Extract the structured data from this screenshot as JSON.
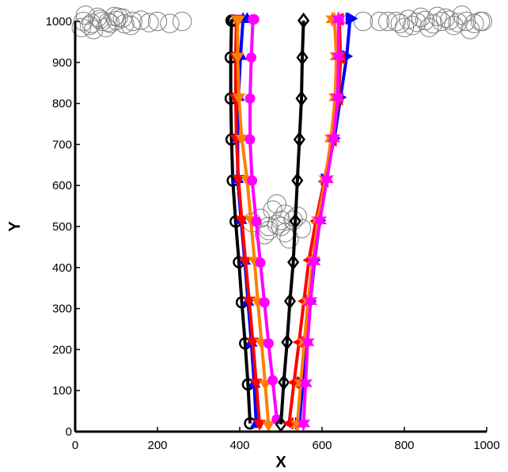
{
  "chart_data": {
    "type": "line",
    "title": "",
    "xlabel": "X",
    "ylabel": "Y",
    "xlim": [
      0,
      1000
    ],
    "ylim": [
      0,
      1000
    ],
    "xticks": [
      0,
      200,
      400,
      600,
      800,
      1000
    ],
    "yticks": [
      0,
      100,
      200,
      300,
      400,
      500,
      600,
      700,
      800,
      900,
      1000
    ],
    "grid": false,
    "legend": "none",
    "series": [
      {
        "color": "#000000",
        "marker": "circle",
        "x": [
          425,
          420,
          413,
          405,
          398,
          390,
          383,
          380,
          378,
          378,
          380,
          385
        ],
        "y": [
          20,
          115,
          215,
          315,
          413,
          512,
          612,
          712,
          812,
          912,
          1002,
          1002
        ]
      },
      {
        "color": "#0000ff",
        "marker": "triangle-up",
        "x": [
          440,
          435,
          428,
          420,
          412,
          403,
          395,
          395,
          397,
          402,
          408,
          418
        ],
        "y": [
          20,
          118,
          218,
          318,
          418,
          517,
          617,
          717,
          817,
          917,
          1007,
          1007
        ]
      },
      {
        "color": "#ff0000",
        "marker": "triangle-down",
        "x": [
          448,
          440,
          432,
          423,
          414,
          405,
          397,
          392,
          390,
          390,
          392,
          395
        ],
        "y": [
          18,
          118,
          218,
          318,
          415,
          515,
          615,
          713,
          813,
          913,
          1005,
          1005
        ]
      },
      {
        "color": "#ff8000",
        "marker": "triangle-down",
        "x": [
          470,
          462,
          453,
          444,
          436,
          427,
          418,
          405,
          398,
          395,
          395,
          397
        ],
        "y": [
          15,
          115,
          215,
          315,
          415,
          515,
          613,
          713,
          813,
          913,
          1003,
          1003
        ]
      },
      {
        "color": "#ff00ff",
        "marker": "circle-filled",
        "x": [
          490,
          480,
          470,
          460,
          450,
          440,
          430,
          425,
          425,
          428,
          432,
          435
        ],
        "y": [
          30,
          125,
          215,
          315,
          412,
          512,
          612,
          712,
          812,
          912,
          1005,
          1005
        ]
      },
      {
        "color": "#000000",
        "marker": "diamond",
        "x": [
          500,
          507,
          515,
          522,
          530,
          535,
          540,
          545,
          550,
          552,
          555,
          555
        ],
        "y": [
          18,
          120,
          218,
          318,
          413,
          513,
          612,
          712,
          812,
          912,
          1002,
          1002
        ]
      },
      {
        "color": "#0000ff",
        "marker": "triangle-right",
        "x": [
          545,
          553,
          562,
          572,
          582,
          595,
          608,
          630,
          645,
          660,
          668,
          672
        ],
        "y": [
          20,
          118,
          218,
          318,
          418,
          515,
          615,
          715,
          815,
          915,
          1007,
          1007
        ]
      },
      {
        "color": "#ff0000",
        "marker": "triangle-left",
        "x": [
          520,
          532,
          544,
          556,
          568,
          585,
          605,
          625,
          640,
          645,
          642,
          640
        ],
        "y": [
          20,
          120,
          218,
          318,
          418,
          513,
          610,
          710,
          810,
          910,
          1005,
          1005
        ]
      },
      {
        "color": "#ff8000",
        "marker": "star",
        "x": [
          540,
          548,
          557,
          566,
          578,
          590,
          608,
          622,
          632,
          635,
          630,
          625
        ],
        "y": [
          18,
          118,
          218,
          318,
          418,
          515,
          615,
          715,
          815,
          915,
          1005,
          1005
        ]
      },
      {
        "color": "#ff00ff",
        "marker": "star",
        "x": [
          555,
          560,
          565,
          572,
          580,
          595,
          612,
          628,
          638,
          640,
          640,
          640
        ],
        "y": [
          20,
          118,
          218,
          318,
          415,
          515,
          615,
          715,
          815,
          915,
          1005,
          1005
        ]
      }
    ],
    "circles": {
      "color": "#808080",
      "radius_data": 30,
      "x": [
        20,
        40,
        60,
        80,
        100,
        120,
        140,
        160,
        180,
        200,
        230,
        260,
        15,
        35,
        55,
        75,
        95,
        115,
        135,
        25,
        45,
        65,
        85,
        105,
        760,
        790,
        810,
        830,
        850,
        870,
        890,
        910,
        930,
        950,
        970,
        990,
        800,
        820,
        840,
        860,
        880,
        900,
        920,
        940,
        960,
        985,
        780,
        740,
        700,
        430,
        450,
        470,
        490,
        510,
        530,
        550,
        460,
        480,
        500,
        520,
        540,
        490,
        470,
        510,
        500
      ],
      "y": [
        1000,
        995,
        1005,
        998,
        1002,
        994,
        1000,
        1003,
        997,
        1000,
        995,
        1000,
        985,
        990,
        1010,
        985,
        1012,
        1008,
        990,
        1015,
        980,
        1000,
        995,
        1010,
        1000,
        995,
        1005,
        998,
        1002,
        994,
        1000,
        1003,
        997,
        1000,
        995,
        1000,
        985,
        990,
        1010,
        985,
        1012,
        1008,
        990,
        1015,
        980,
        1000,
        1000,
        1000,
        1000,
        510,
        520,
        490,
        505,
        530,
        515,
        495,
        480,
        540,
        500,
        470,
        525,
        555,
        500,
        485,
        515
      ]
    }
  }
}
